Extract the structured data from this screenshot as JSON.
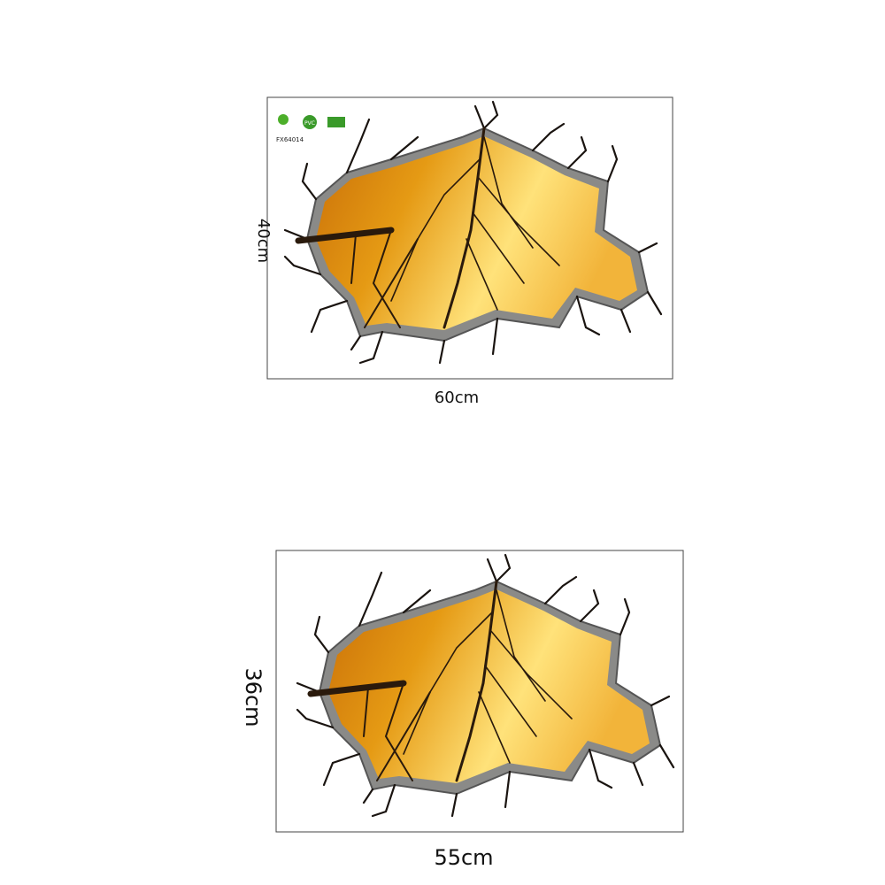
{
  "product_code": "FX64014",
  "badge": "PVC",
  "panels": [
    {
      "height_label": "40cm",
      "width_label": "60cm"
    },
    {
      "height_label": "36cm",
      "width_label": "55cm"
    }
  ]
}
